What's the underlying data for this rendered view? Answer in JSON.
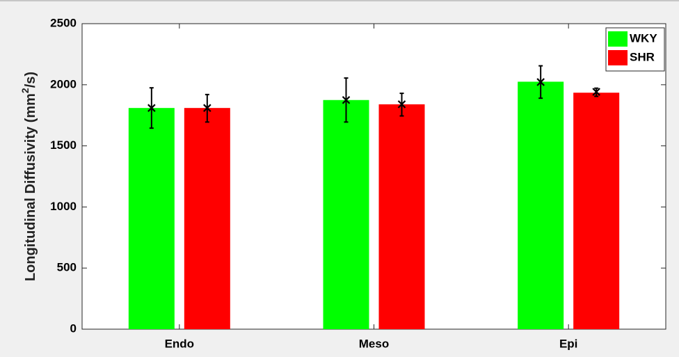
{
  "chart_data": {
    "type": "bar",
    "title": "",
    "xlabel": "",
    "ylabel": "Longitudinal Diffusivity (mm",
    "ylabel_sup": "2",
    "ylabel_tail": "/s)",
    "categories": [
      "Endo",
      "Meso",
      "Epi"
    ],
    "ylim": [
      0,
      2500
    ],
    "yticks": [
      0,
      500,
      1000,
      1500,
      2000,
      2500
    ],
    "grid": false,
    "legend_position": "top-right",
    "series": [
      {
        "name": "WKY",
        "color": "#00ff00",
        "values": [
          1810,
          1875,
          2025
        ],
        "marker_values": [
          1810,
          1875,
          2022
        ],
        "error_low": [
          1645,
          1695,
          1890
        ],
        "error_high": [
          1975,
          2055,
          2155
        ]
      },
      {
        "name": "SHR",
        "color": "#ff0000",
        "values": [
          1810,
          1840,
          1935
        ],
        "marker_values": [
          1810,
          1840,
          1942
        ],
        "error_low": [
          1695,
          1745,
          1905
        ],
        "error_high": [
          1920,
          1930,
          1972
        ]
      }
    ]
  }
}
